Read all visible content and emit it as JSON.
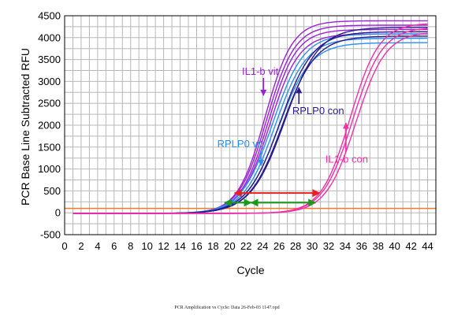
{
  "chart_data": {
    "type": "line",
    "xlabel": "Cycle",
    "ylabel": "PCR Base Line Subtracted RFU",
    "xlim": [
      0,
      45
    ],
    "ylim": [
      -500,
      4500
    ],
    "x_ticks": [
      0,
      2,
      4,
      6,
      8,
      10,
      12,
      14,
      16,
      18,
      20,
      22,
      24,
      26,
      28,
      30,
      32,
      34,
      36,
      38,
      40,
      42,
      44
    ],
    "y_ticks": [
      -500,
      0,
      500,
      1000,
      1500,
      2000,
      2500,
      3000,
      3500,
      4000,
      4500
    ],
    "grid": true,
    "threshold": {
      "value": 100,
      "color": "#f07a2a"
    },
    "series": [
      {
        "name": "IL1-b vit",
        "color": "#9a20d8",
        "curves": [
          {
            "plateau": 4400,
            "midpoint": 24.3,
            "slope": 1.65
          },
          {
            "plateau": 4300,
            "midpoint": 24.5,
            "slope": 1.7
          },
          {
            "plateau": 4200,
            "midpoint": 24.7,
            "slope": 1.7
          },
          {
            "plateau": 4100,
            "midpoint": 24.9,
            "slope": 1.75
          }
        ]
      },
      {
        "name": "RPLP0 vit",
        "color": "#2a8ff0",
        "curves": [
          {
            "plateau": 4100,
            "midpoint": 25.2,
            "slope": 1.9
          },
          {
            "plateau": 4000,
            "midpoint": 25.5,
            "slope": 1.9
          },
          {
            "plateau": 3900,
            "midpoint": 25.9,
            "slope": 1.95
          }
        ]
      },
      {
        "name": "RPLP0 con",
        "color": "#2a1a8a",
        "curves": [
          {
            "plateau": 4150,
            "midpoint": 26.1,
            "slope": 2.0
          },
          {
            "plateau": 4050,
            "midpoint": 26.4,
            "slope": 2.0
          },
          {
            "plateau": 4250,
            "midpoint": 26.7,
            "slope": 2.05
          }
        ]
      },
      {
        "name": "IL1-b con",
        "color": "#f030a8",
        "curves": [
          {
            "plateau": 4350,
            "midpoint": 34.6,
            "slope": 1.75
          },
          {
            "plateau": 4250,
            "midpoint": 34.9,
            "slope": 1.8
          },
          {
            "plateau": 4150,
            "midpoint": 35.3,
            "slope": 1.8
          }
        ]
      }
    ],
    "annotations": [
      {
        "text": "IL1-b vit",
        "color": "#9a20d8",
        "x": 21.5,
        "y": 3150,
        "arrow_to": [
          24.1,
          2680
        ]
      },
      {
        "text": "RPLP0 con",
        "color": "#2a1a8a",
        "x": 27.6,
        "y": 2250,
        "arrow_to": [
          28.4,
          2860
        ]
      },
      {
        "text": "RPLP0 vit",
        "color": "#2a8ff0",
        "x": 18.5,
        "y": 1500,
        "arrow_to": [
          23.8,
          1080
        ]
      },
      {
        "text": "IL1-b con",
        "color": "#f030a8",
        "x": 31.6,
        "y": 1150,
        "arrow_to": [
          34.1,
          2050
        ]
      }
    ],
    "brackets": [
      {
        "color": "#e82020",
        "x1": 20.6,
        "x2": 30.9,
        "y": 450
      },
      {
        "color": "#1a9a1a",
        "x1": 19.4,
        "x2": 22.6,
        "y": 230
      },
      {
        "color": "#1a9a1a",
        "x1": 22.6,
        "x2": 30.4,
        "y": 230
      }
    ]
  },
  "footer": "PCR Amplification vs Cycle: Data 26-Feb-03 1147.opd"
}
